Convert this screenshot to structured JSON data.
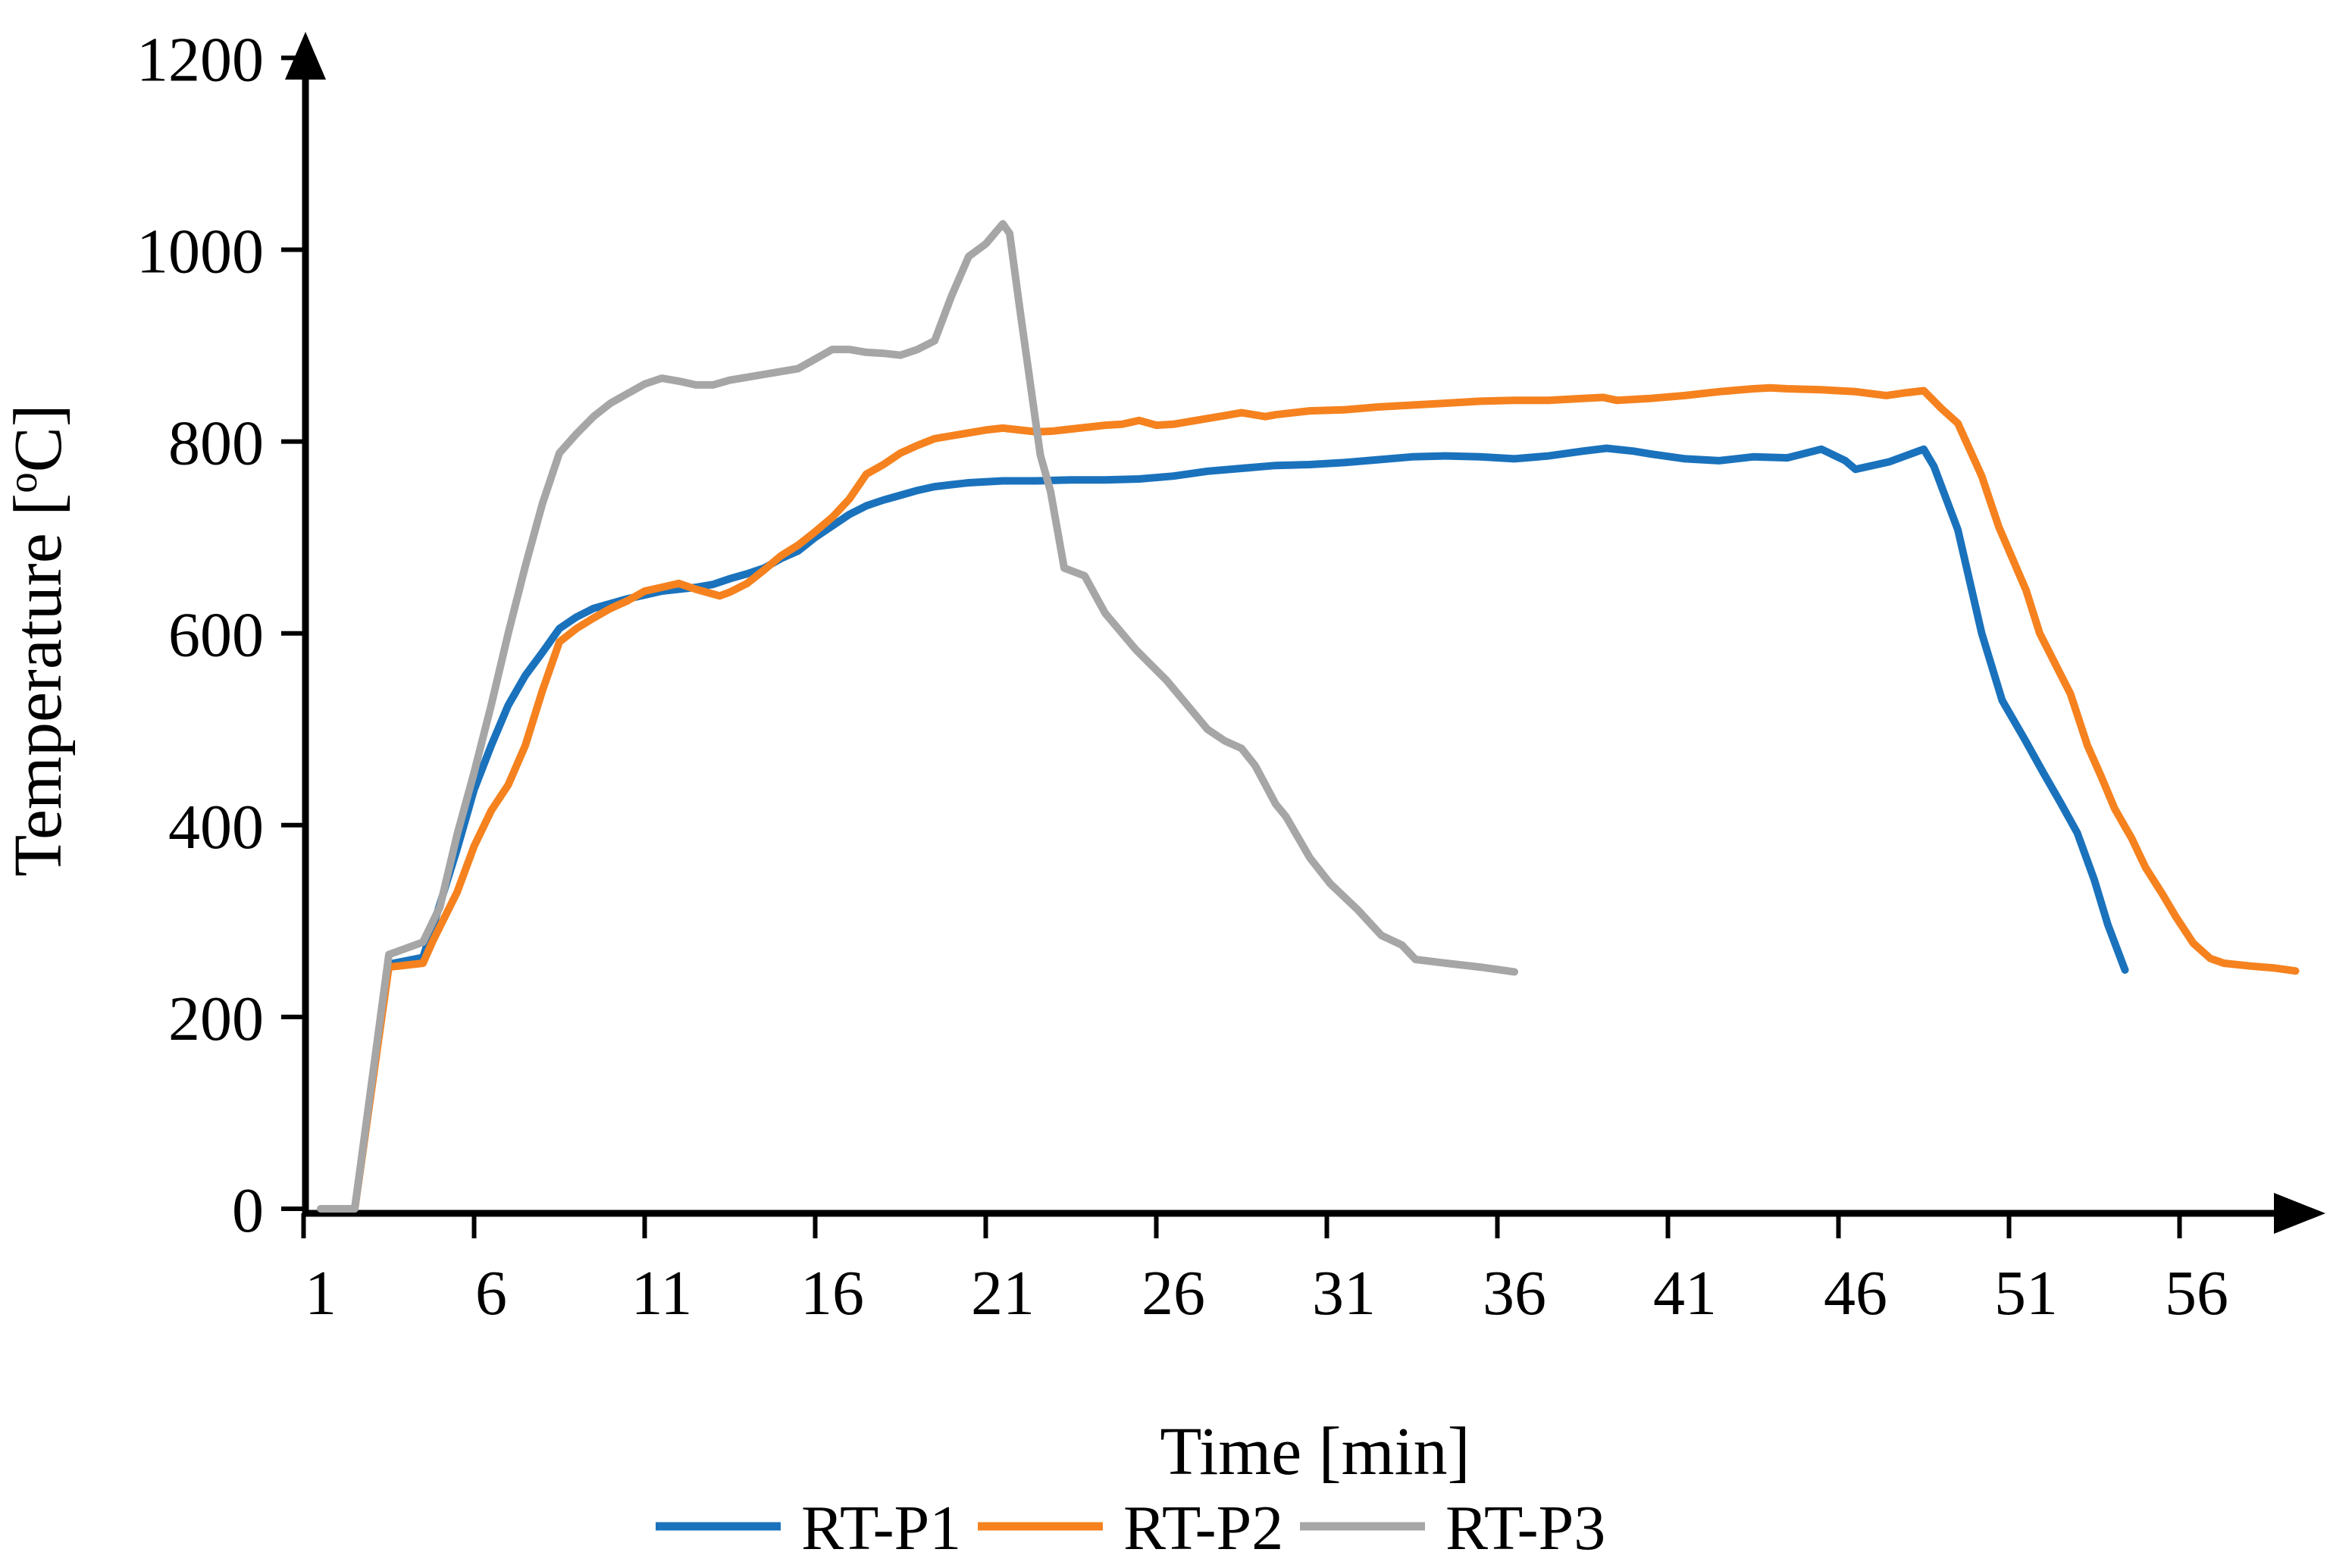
{
  "chart_data": {
    "type": "line",
    "title": "",
    "xlabel": "Time [min]",
    "ylabel": "Temperature [oC]",
    "ylabel_parts": {
      "pre": "Temperature [",
      "sup": "o",
      "post": "C]"
    },
    "x_ticks": [
      1,
      6,
      11,
      16,
      21,
      26,
      31,
      36,
      41,
      46,
      51,
      56
    ],
    "y_ticks": [
      0,
      200,
      400,
      600,
      800,
      1000,
      1200
    ],
    "xlim": [
      1,
      59.5
    ],
    "ylim": [
      0,
      1200
    ],
    "grid": false,
    "legend_position": "bottom",
    "axis_color": "#000000",
    "background": "#ffffff",
    "series": [
      {
        "name": "RT-P1",
        "color": "#1A72BC",
        "points": [
          [
            2,
            0
          ],
          [
            3,
            255
          ],
          [
            4,
            262
          ],
          [
            4.3,
            295
          ],
          [
            5,
            375
          ],
          [
            5.5,
            437
          ],
          [
            6,
            483
          ],
          [
            6.5,
            525
          ],
          [
            7,
            556
          ],
          [
            7.5,
            580
          ],
          [
            8,
            605
          ],
          [
            8.5,
            617
          ],
          [
            9,
            626
          ],
          [
            9.5,
            631
          ],
          [
            10,
            636
          ],
          [
            10.5,
            640
          ],
          [
            11,
            644
          ],
          [
            11.5,
            646
          ],
          [
            12,
            648
          ],
          [
            12.5,
            651
          ],
          [
            13,
            657
          ],
          [
            13.5,
            662
          ],
          [
            14,
            668
          ],
          [
            14.5,
            678
          ],
          [
            15,
            686
          ],
          [
            15.5,
            700
          ],
          [
            16,
            712
          ],
          [
            16.5,
            724
          ],
          [
            17,
            733
          ],
          [
            17.5,
            739
          ],
          [
            18,
            744
          ],
          [
            18.5,
            749
          ],
          [
            19,
            753
          ],
          [
            19.5,
            755
          ],
          [
            20,
            757
          ],
          [
            21,
            759
          ],
          [
            22,
            759
          ],
          [
            23,
            760
          ],
          [
            24,
            760
          ],
          [
            25,
            761
          ],
          [
            26,
            764
          ],
          [
            27,
            769
          ],
          [
            28,
            772
          ],
          [
            29,
            775
          ],
          [
            30,
            776
          ],
          [
            31,
            778
          ],
          [
            32,
            781
          ],
          [
            33,
            784
          ],
          [
            34,
            785
          ],
          [
            35,
            784
          ],
          [
            36,
            782
          ],
          [
            37,
            785
          ],
          [
            38,
            790
          ],
          [
            38.7,
            793
          ],
          [
            39.5,
            790
          ],
          [
            40,
            787
          ],
          [
            41,
            782
          ],
          [
            42,
            780
          ],
          [
            43,
            784
          ],
          [
            44,
            783
          ],
          [
            45,
            792
          ],
          [
            45.7,
            780
          ],
          [
            46,
            771
          ],
          [
            47,
            779
          ],
          [
            48,
            792
          ],
          [
            48.3,
            774
          ],
          [
            49,
            708
          ],
          [
            49.7,
            600
          ],
          [
            50.3,
            530
          ],
          [
            51,
            487
          ],
          [
            51.5,
            455
          ],
          [
            52,
            424
          ],
          [
            52.5,
            392
          ],
          [
            53,
            343
          ],
          [
            53.4,
            296
          ],
          [
            53.9,
            249
          ]
        ]
      },
      {
        "name": "RT-P2",
        "color": "#F5821F",
        "points": [
          [
            2,
            0
          ],
          [
            3,
            252
          ],
          [
            4,
            256
          ],
          [
            4.3,
            280
          ],
          [
            5,
            330
          ],
          [
            5.5,
            378
          ],
          [
            6,
            415
          ],
          [
            6.5,
            442
          ],
          [
            7,
            483
          ],
          [
            7.5,
            540
          ],
          [
            8,
            591
          ],
          [
            8.5,
            605
          ],
          [
            9,
            616
          ],
          [
            9.5,
            626
          ],
          [
            10,
            634
          ],
          [
            10.5,
            644
          ],
          [
            11,
            648
          ],
          [
            11.5,
            652
          ],
          [
            12,
            646
          ],
          [
            12.7,
            639
          ],
          [
            13,
            643
          ],
          [
            13.5,
            652
          ],
          [
            14,
            666
          ],
          [
            14.5,
            681
          ],
          [
            15,
            692
          ],
          [
            15.5,
            706
          ],
          [
            16,
            721
          ],
          [
            16.5,
            740
          ],
          [
            17,
            766
          ],
          [
            17.5,
            776
          ],
          [
            18,
            788
          ],
          [
            18.5,
            796
          ],
          [
            19,
            803
          ],
          [
            19.5,
            806
          ],
          [
            20,
            809
          ],
          [
            20.5,
            812
          ],
          [
            21,
            814
          ],
          [
            21.5,
            812
          ],
          [
            22,
            810
          ],
          [
            22.5,
            811
          ],
          [
            23,
            813
          ],
          [
            23.5,
            815
          ],
          [
            24,
            817
          ],
          [
            24.5,
            818
          ],
          [
            25,
            822
          ],
          [
            25.5,
            817
          ],
          [
            26,
            818
          ],
          [
            27,
            824
          ],
          [
            27.5,
            827
          ],
          [
            28,
            830
          ],
          [
            28.7,
            826
          ],
          [
            29,
            828
          ],
          [
            30,
            832
          ],
          [
            31,
            833
          ],
          [
            32,
            836
          ],
          [
            33,
            838
          ],
          [
            34,
            840
          ],
          [
            35,
            842
          ],
          [
            36,
            843
          ],
          [
            37,
            843
          ],
          [
            38,
            845
          ],
          [
            38.6,
            846
          ],
          [
            39,
            843
          ],
          [
            40,
            845
          ],
          [
            41,
            848
          ],
          [
            42,
            852
          ],
          [
            43,
            855
          ],
          [
            43.5,
            856
          ],
          [
            44,
            855
          ],
          [
            45,
            854
          ],
          [
            46,
            852
          ],
          [
            46.9,
            848
          ],
          [
            47.5,
            851
          ],
          [
            48,
            853
          ],
          [
            48.5,
            835
          ],
          [
            49,
            819
          ],
          [
            49.7,
            764
          ],
          [
            50.2,
            711
          ],
          [
            51,
            645
          ],
          [
            51.4,
            600
          ],
          [
            52,
            558
          ],
          [
            52.3,
            537
          ],
          [
            52.8,
            483
          ],
          [
            53.2,
            451
          ],
          [
            53.6,
            417
          ],
          [
            54.1,
            386
          ],
          [
            54.5,
            356
          ],
          [
            55,
            328
          ],
          [
            55.4,
            304
          ],
          [
            55.9,
            277
          ],
          [
            56.4,
            261
          ],
          [
            56.8,
            256
          ],
          [
            57.6,
            253
          ],
          [
            58.3,
            251
          ],
          [
            58.9,
            248
          ]
        ]
      },
      {
        "name": "RT-P3",
        "color": "#A6A6A6",
        "points": [
          [
            1,
            0
          ],
          [
            2,
            0
          ],
          [
            3,
            265
          ],
          [
            4,
            278
          ],
          [
            4.5,
            315
          ],
          [
            5,
            390
          ],
          [
            5.5,
            455
          ],
          [
            6,
            525
          ],
          [
            6.5,
            600
          ],
          [
            7,
            670
          ],
          [
            7.5,
            735
          ],
          [
            8,
            788
          ],
          [
            8.5,
            808
          ],
          [
            9,
            826
          ],
          [
            9.5,
            840
          ],
          [
            10,
            850
          ],
          [
            10.5,
            860
          ],
          [
            11,
            866
          ],
          [
            11.5,
            863
          ],
          [
            12,
            859
          ],
          [
            12.5,
            859
          ],
          [
            13,
            864
          ],
          [
            13.5,
            867
          ],
          [
            14,
            870
          ],
          [
            14.5,
            873
          ],
          [
            15,
            876
          ],
          [
            15.5,
            886
          ],
          [
            16,
            896
          ],
          [
            16.5,
            896
          ],
          [
            17,
            893
          ],
          [
            17.5,
            892
          ],
          [
            18,
            890
          ],
          [
            18.5,
            896
          ],
          [
            19,
            905
          ],
          [
            19.5,
            952
          ],
          [
            20,
            993
          ],
          [
            20.5,
            1006
          ],
          [
            21,
            1027
          ],
          [
            21.2,
            1017
          ],
          [
            21.5,
            938
          ],
          [
            21.8,
            862
          ],
          [
            22.1,
            786
          ],
          [
            22.4,
            748
          ],
          [
            22.8,
            668
          ],
          [
            23.4,
            660
          ],
          [
            24,
            621
          ],
          [
            24.9,
            583
          ],
          [
            25.8,
            551
          ],
          [
            26.6,
            517
          ],
          [
            27,
            500
          ],
          [
            27.5,
            488
          ],
          [
            28,
            480
          ],
          [
            28.4,
            462
          ],
          [
            29,
            422
          ],
          [
            29.3,
            409
          ],
          [
            30,
            366
          ],
          [
            30.6,
            339
          ],
          [
            31.4,
            312
          ],
          [
            32.1,
            285
          ],
          [
            32.7,
            275
          ],
          [
            33.1,
            260
          ],
          [
            34,
            256
          ],
          [
            35,
            252
          ],
          [
            36,
            247
          ]
        ]
      }
    ]
  }
}
